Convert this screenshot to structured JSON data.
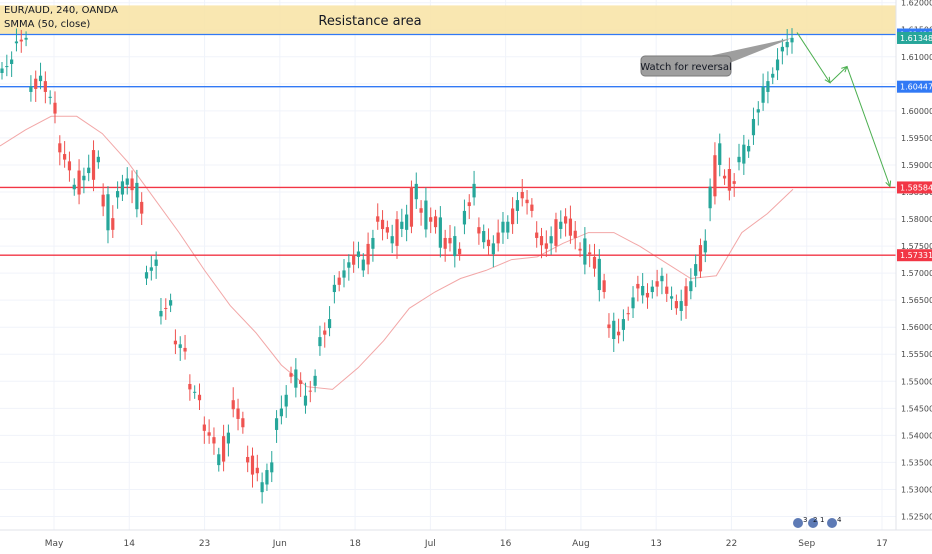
{
  "legend": {
    "symbol_line": "EUR/AUD, 240, OANDA",
    "indicator_line": "SMMA (50, close)"
  },
  "chart_data": {
    "type": "candlestick",
    "title": "",
    "y_ticks": [
      1.525,
      1.53,
      1.535,
      1.54,
      1.545,
      1.55,
      1.555,
      1.56,
      1.565,
      1.57,
      1.575,
      1.58,
      1.585,
      1.59,
      1.595,
      1.6,
      1.605,
      1.61,
      1.615,
      1.62
    ],
    "y_tick_labels": [
      "1.52500",
      "1.53000",
      "1.53500",
      "1.54000",
      "1.54500",
      "1.55000",
      "1.55500",
      "1.56000",
      "1.56500",
      "1.57000",
      "1.57500",
      "1.58000",
      "1.58500",
      "1.59000",
      "1.59500",
      "1.60000",
      "1.60500",
      "1.61000",
      "1.61500",
      "1.62000"
    ],
    "ylim": [
      1.5225,
      1.6205
    ],
    "x_tick_labels": [
      "May",
      "14",
      "23",
      "Jun",
      "18",
      "Jul",
      "16",
      "Aug",
      "13",
      "22",
      "Sep",
      "17"
    ],
    "resistance_zone": {
      "label": "Resistance area",
      "from": 1.6141,
      "to": 1.6195,
      "color": "#f8e3a3"
    },
    "horizontal_levels": [
      {
        "value": 1.61412,
        "label": "1.61412",
        "color": "#3179f5"
      },
      {
        "value": 1.60447,
        "label": "1.60447",
        "color": "#3179f5"
      },
      {
        "value": 1.58584,
        "label": "1.58584",
        "color": "#f23645"
      },
      {
        "value": 1.57331,
        "label": "1.57331",
        "color": "#f23645"
      }
    ],
    "last_price": {
      "value": 1.61348,
      "label": "1.61348",
      "color": "#26a69a"
    },
    "annotation": {
      "text": "Watch for reversal"
    },
    "projected_path": [
      [
        1.6145,
        1.6052
      ],
      [
        1.6052,
        1.6082
      ],
      [
        1.6082,
        1.586
      ]
    ],
    "price_path": [
      [
        1.607,
        1.6095
      ],
      [
        1.6125,
        1.6135
      ],
      [
        1.6035,
        1.6065
      ],
      [
        1.6055,
        1.5995
      ],
      [
        1.594,
        1.589
      ],
      [
        1.5855,
        1.588
      ],
      [
        1.5885,
        1.5915
      ],
      [
        1.5845,
        1.578
      ],
      [
        1.584,
        1.5875
      ],
      [
        1.5875,
        1.581
      ],
      [
        1.569,
        1.5725
      ],
      [
        1.562,
        1.565
      ],
      [
        1.5575,
        1.5555
      ],
      [
        1.5495,
        1.5465
      ],
      [
        1.542,
        1.5385
      ],
      [
        1.5345,
        1.5405
      ],
      [
        1.5465,
        1.5415
      ],
      [
        1.536,
        1.533
      ],
      [
        1.5295,
        1.535
      ],
      [
        1.541,
        1.5475
      ],
      [
        1.5515,
        1.5495
      ],
      [
        1.5455,
        1.551
      ],
      [
        1.5565,
        1.5615
      ],
      [
        1.5665,
        1.5705
      ],
      [
        1.571,
        1.574
      ],
      [
        1.5705,
        1.5765
      ],
      [
        1.5805,
        1.5775
      ],
      [
        1.5755,
        1.5795
      ],
      [
        1.578,
        1.5865
      ],
      [
        1.582,
        1.5795
      ],
      [
        1.5805,
        1.5745
      ],
      [
        1.5765,
        1.5735
      ],
      [
        1.579,
        1.5865
      ],
      [
        1.5785,
        1.575
      ],
      [
        1.5735,
        1.5795
      ],
      [
        1.5775,
        1.5835
      ],
      [
        1.585,
        1.5815
      ],
      [
        1.5775,
        1.5745
      ],
      [
        1.5755,
        1.5795
      ],
      [
        1.5805,
        1.5765
      ],
      [
        1.5745,
        1.5735
      ],
      [
        1.573,
        1.5665
      ],
      [
        1.5605,
        1.5585
      ],
      [
        1.5595,
        1.5655
      ],
      [
        1.568,
        1.5655
      ],
      [
        1.5665,
        1.5695
      ],
      [
        1.5675,
        1.5635
      ],
      [
        1.563,
        1.5685
      ],
      [
        1.5695,
        1.576
      ],
      [
        1.582,
        1.594
      ],
      [
        1.588,
        1.5865
      ],
      [
        1.5905,
        1.5935
      ],
      [
        1.5955,
        1.6045
      ],
      [
        1.6035,
        1.6095
      ],
      [
        1.611,
        1.6135
      ]
    ],
    "smma_path": [
      1.5935,
      1.5965,
      1.599,
      1.599,
      1.5958,
      1.5905,
      1.584,
      1.5775,
      1.5705,
      1.564,
      1.559,
      1.553,
      1.549,
      1.5485,
      1.5525,
      1.5575,
      1.5635,
      1.5665,
      1.569,
      1.5705,
      1.5725,
      1.573,
      1.5755,
      1.5775,
      1.5775,
      1.575,
      1.572,
      1.569,
      1.5695,
      1.5775,
      1.581,
      1.5855
    ]
  },
  "status_icons": {
    "badge_a": "3",
    "badge_b": "2",
    "badge_c": "1",
    "badge_d": "4"
  }
}
